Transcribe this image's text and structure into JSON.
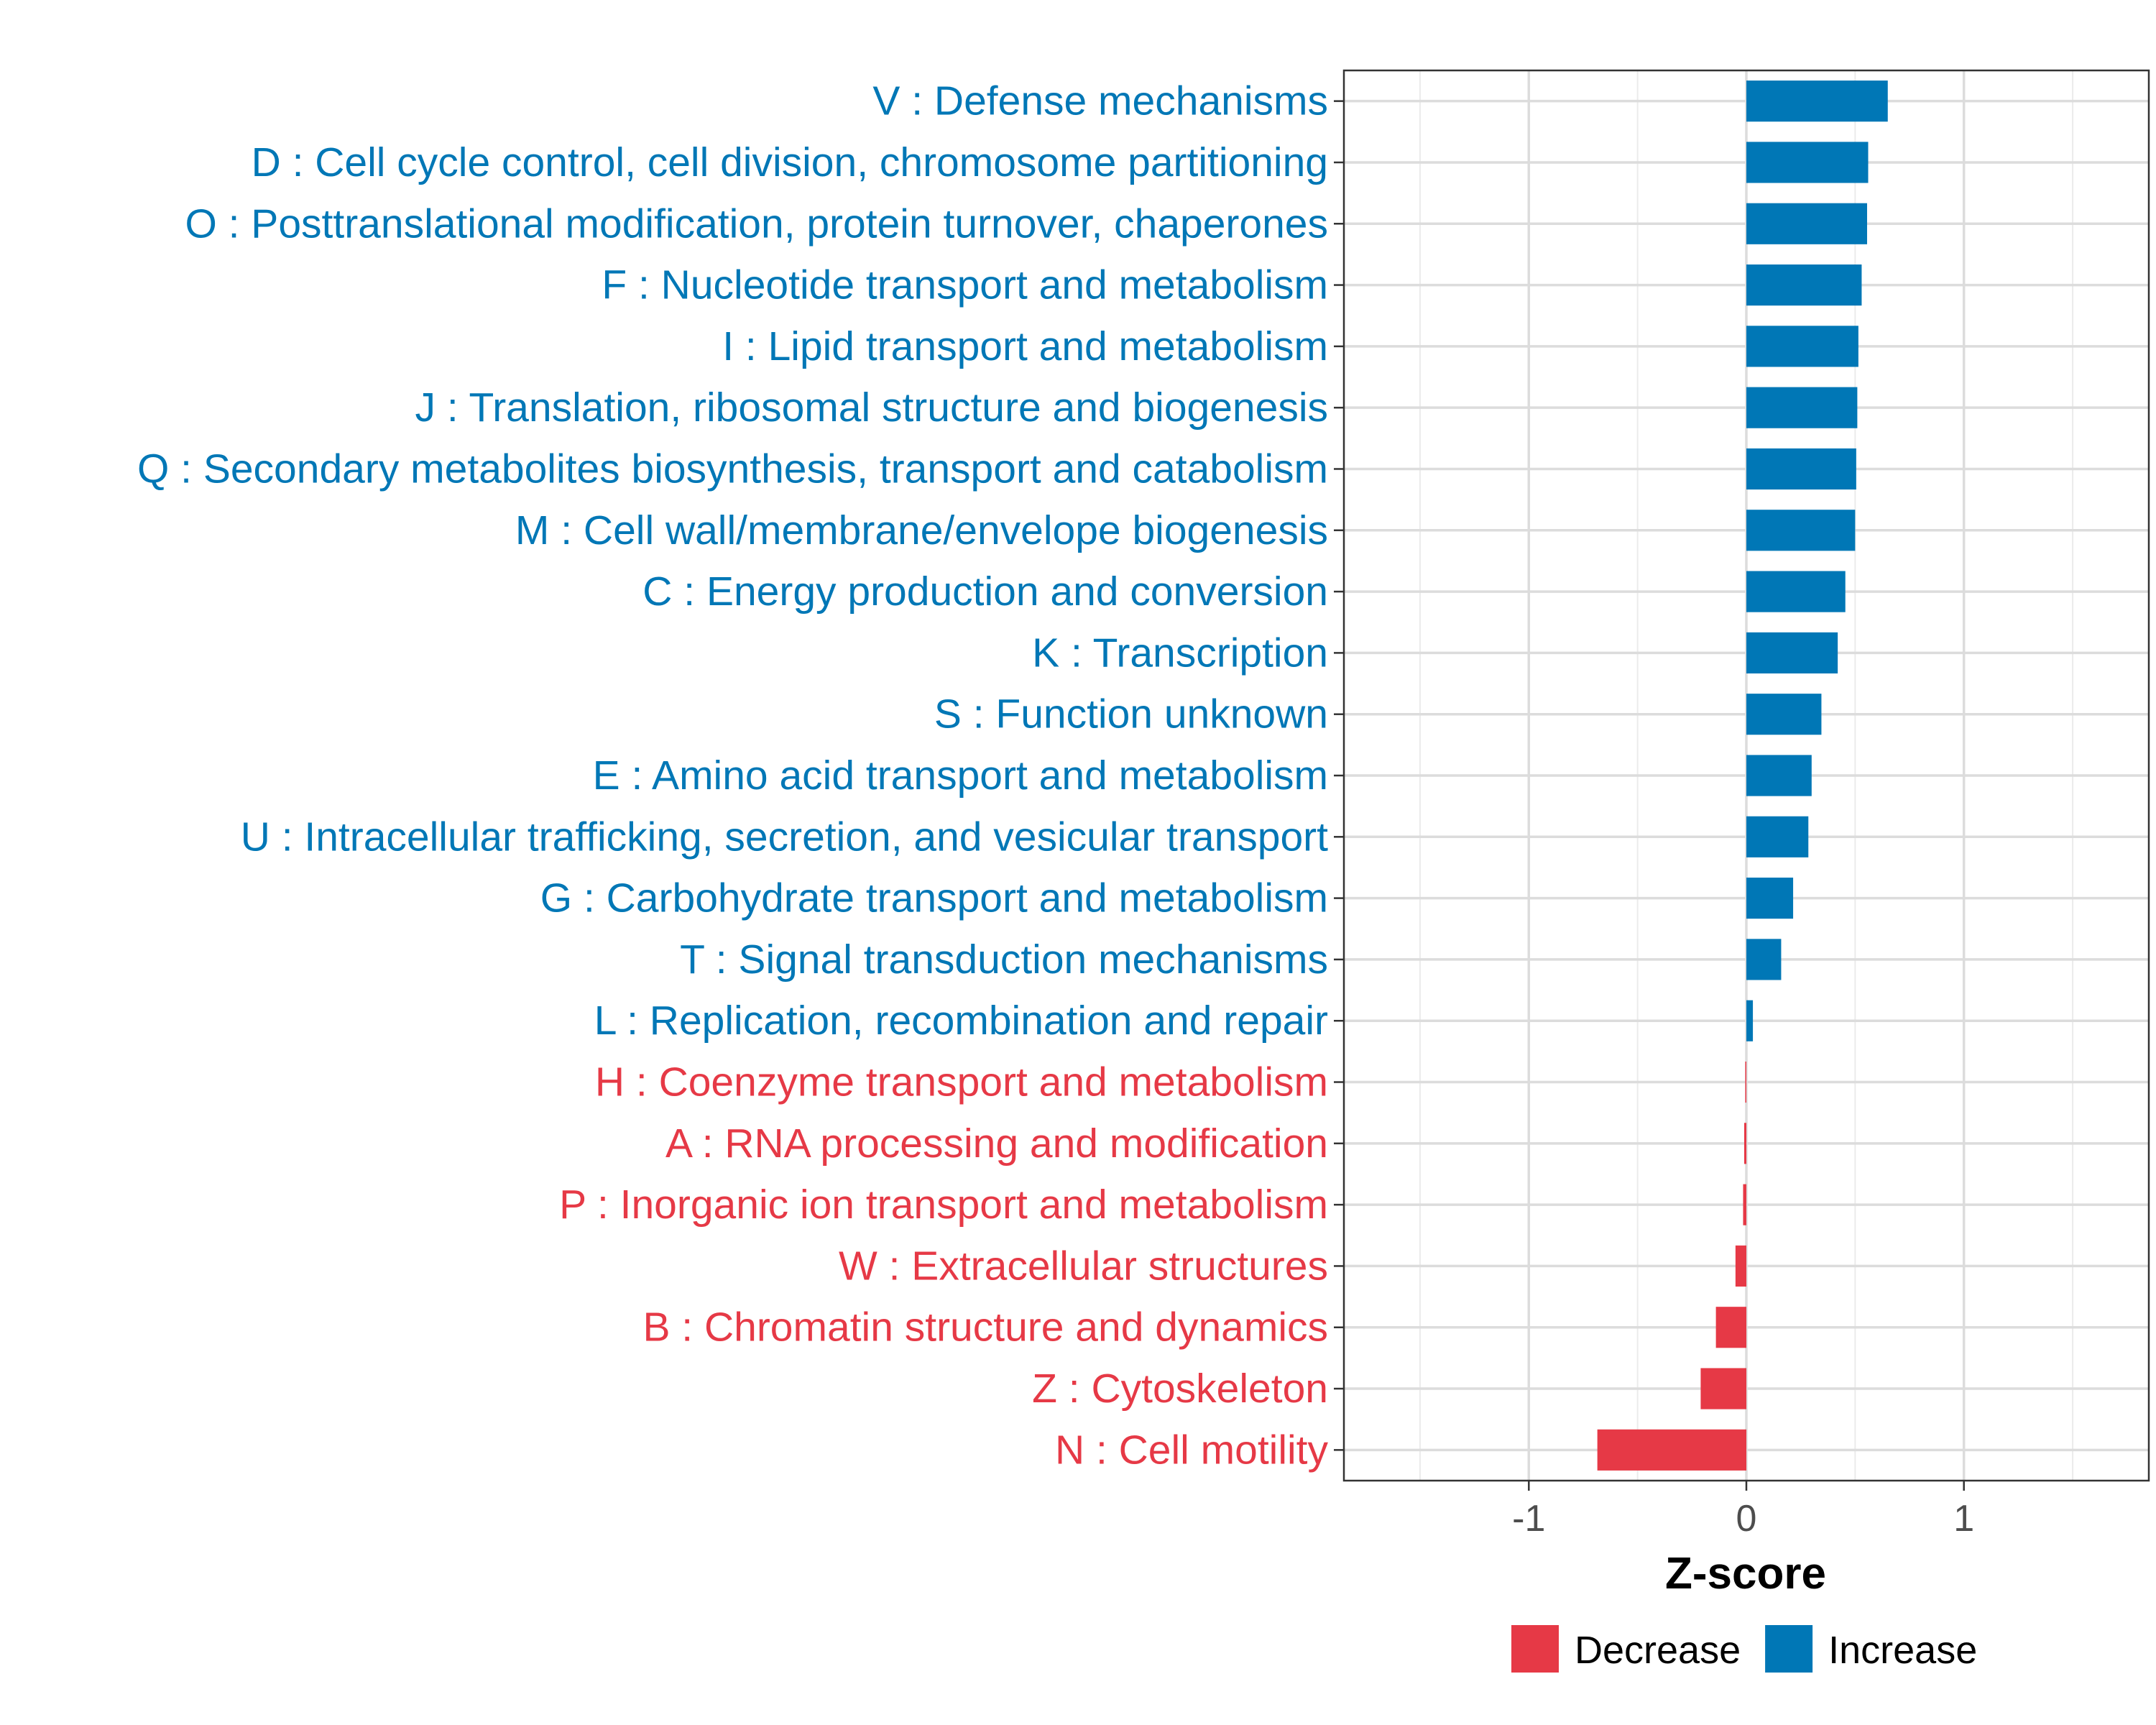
{
  "chart_data": {
    "type": "bar",
    "orientation": "horizontal",
    "xlabel": "Z-score",
    "xlim": [
      -1.85,
      1.85
    ],
    "xticks": [
      -1,
      0,
      1
    ],
    "xtick_labels": [
      "-1",
      "0",
      "1"
    ],
    "grid": true,
    "legend_position": "bottom",
    "colors": {
      "Decrease": "#E63946",
      "Increase": "#0077B6"
    },
    "legend": [
      {
        "label": "Decrease",
        "color": "#E63946"
      },
      {
        "label": "Increase",
        "color": "#0077B6"
      }
    ],
    "categories": [
      "V : Defense mechanisms",
      "D : Cell cycle control, cell division, chromosome partitioning",
      "O : Posttranslational modification, protein turnover, chaperones",
      "F : Nucleotide transport and metabolism",
      "I : Lipid transport and metabolism",
      "J : Translation, ribosomal structure and biogenesis",
      "Q : Secondary metabolites biosynthesis, transport and catabolism",
      "M : Cell wall/membrane/envelope biogenesis",
      "C : Energy production and conversion",
      "K : Transcription",
      "S : Function unknown",
      "E : Amino acid transport and metabolism",
      "U : Intracellular trafficking, secretion, and vesicular transport",
      "G : Carbohydrate transport and metabolism",
      "T : Signal transduction mechanisms",
      "L : Replication, recombination and repair",
      "H : Coenzyme transport and metabolism",
      "A : RNA processing and modification",
      "P : Inorganic ion transport and metabolism",
      "W : Extracellular structures",
      "B : Chromatin structure and dynamics",
      "Z : Cytoskeleton",
      "N : Cell motility"
    ],
    "values": [
      0.65,
      0.56,
      0.555,
      0.53,
      0.515,
      0.51,
      0.505,
      0.5,
      0.455,
      0.42,
      0.345,
      0.3,
      0.285,
      0.215,
      0.16,
      0.03,
      -0.005,
      -0.01,
      -0.015,
      -0.05,
      -0.14,
      -0.21,
      -0.685
    ],
    "direction": [
      "Increase",
      "Increase",
      "Increase",
      "Increase",
      "Increase",
      "Increase",
      "Increase",
      "Increase",
      "Increase",
      "Increase",
      "Increase",
      "Increase",
      "Increase",
      "Increase",
      "Increase",
      "Increase",
      "Decrease",
      "Decrease",
      "Decrease",
      "Decrease",
      "Decrease",
      "Decrease",
      "Decrease"
    ]
  }
}
